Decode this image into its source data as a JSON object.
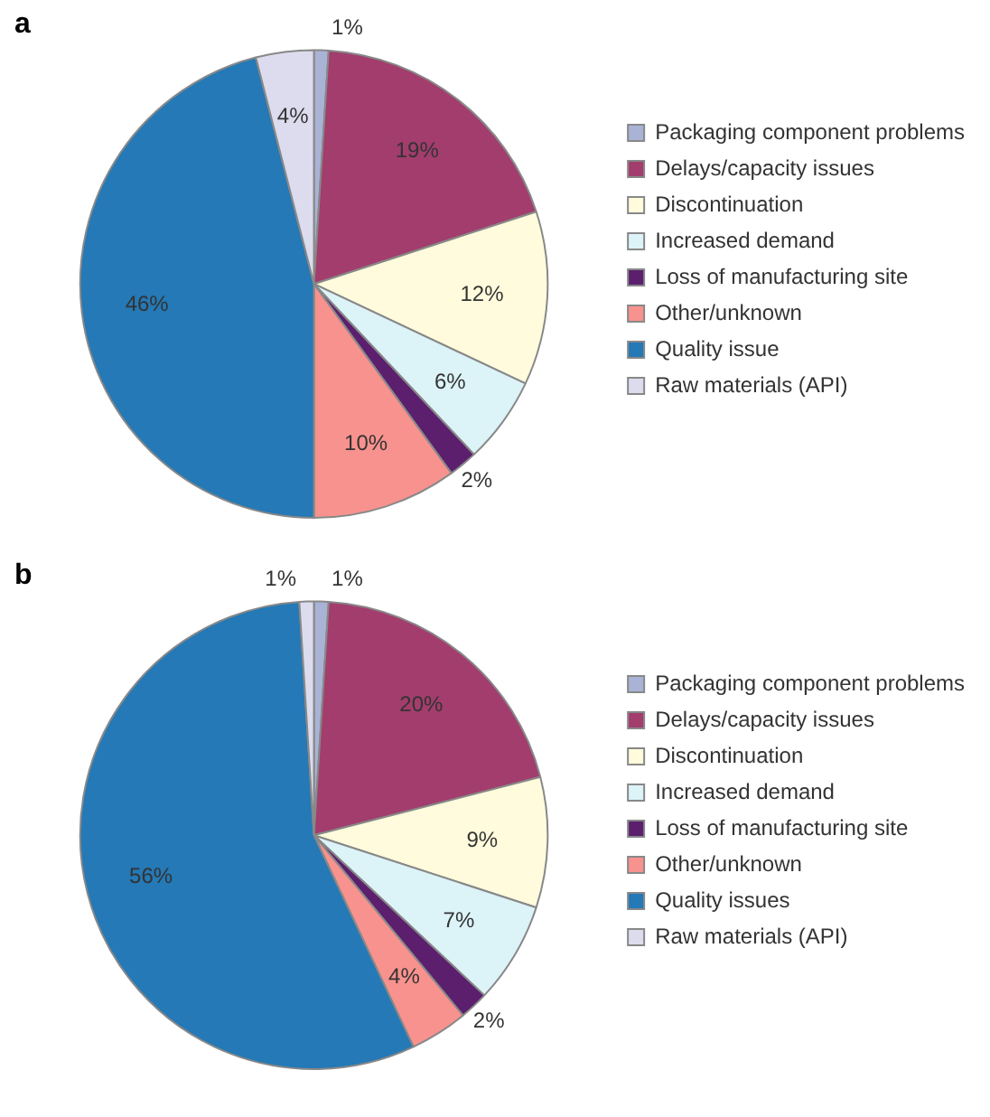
{
  "chart_data": [
    {
      "type": "pie",
      "title": "a",
      "categories": [
        "Packaging component problems",
        "Delays/capacity issues",
        "Discontinuation",
        "Increased demand",
        "Loss of manufacturing site",
        "Other/unknown",
        "Quality issue",
        "Raw materials (API)"
      ],
      "values": [
        1,
        19,
        12,
        6,
        2,
        10,
        46,
        4
      ],
      "value_labels": [
        "1%",
        "19%",
        "12%",
        "6%",
        "2%",
        "10%",
        "46%",
        "4%"
      ],
      "colors": [
        "#a9b3d6",
        "#a23d6d",
        "#fffbdc",
        "#dcf3f8",
        "#5b1f6e",
        "#f8928e",
        "#2479b6",
        "#dcdcee"
      ],
      "legend": "right"
    },
    {
      "type": "pie",
      "title": "b",
      "categories": [
        "Packaging component problems",
        "Delays/capacity issues",
        "Discontinuation",
        "Increased demand",
        "Loss of manufacturing site",
        "Other/unknown",
        "Quality issues",
        "Raw materials (API)"
      ],
      "values": [
        1,
        20,
        9,
        7,
        2,
        4,
        56,
        1
      ],
      "value_labels": [
        "1%",
        "20%",
        "9%",
        "7%",
        "2%",
        "4%",
        "56%",
        "1%"
      ],
      "colors": [
        "#a9b3d6",
        "#a23d6d",
        "#fffbdc",
        "#dcf3f8",
        "#5b1f6e",
        "#f8928e",
        "#2479b6",
        "#dcdcee"
      ],
      "legend": "right"
    }
  ]
}
